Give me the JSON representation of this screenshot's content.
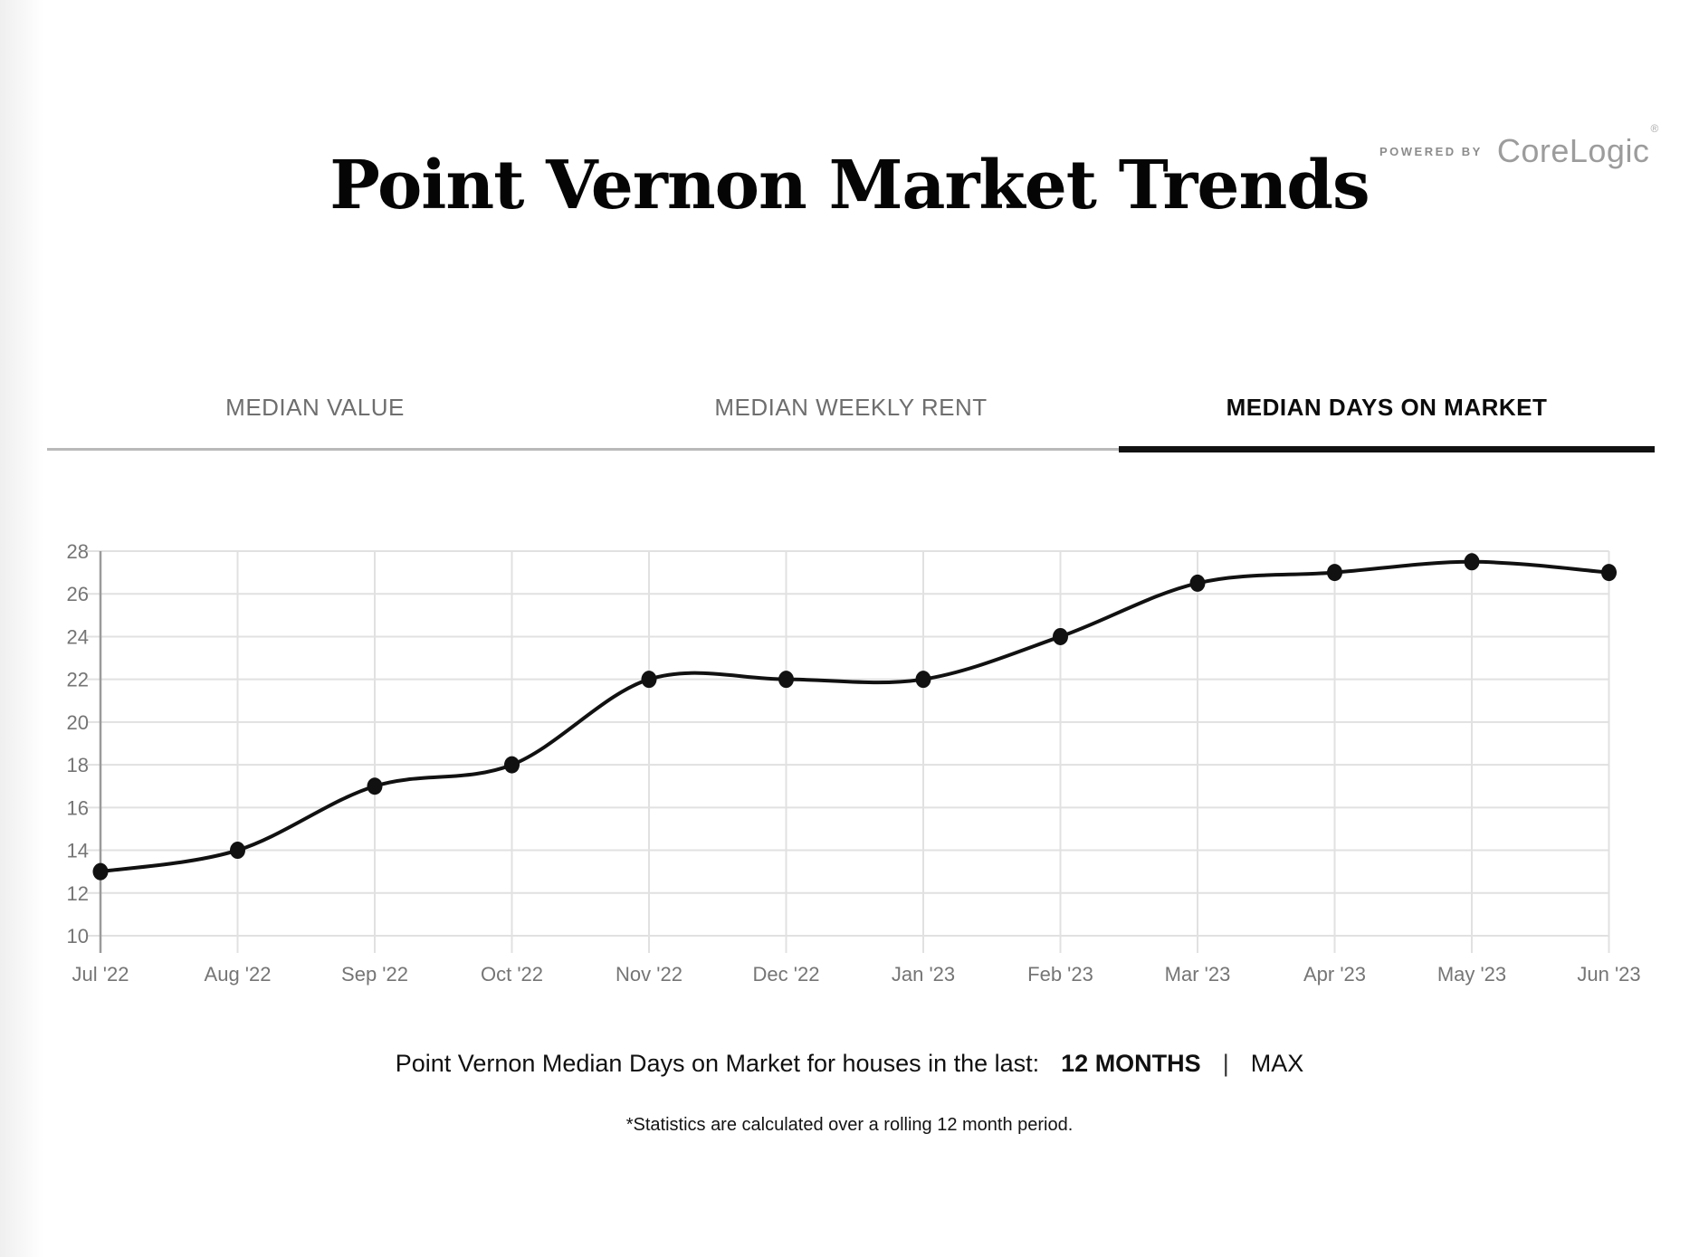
{
  "page": {
    "title": "Point Vernon Market Trends"
  },
  "powered_by": {
    "prefix": "POWERED BY",
    "brand": "CoreLogic",
    "mark": "®"
  },
  "tabs": {
    "items": [
      {
        "label": "MEDIAN VALUE",
        "active": false
      },
      {
        "label": "MEDIAN WEEKLY RENT",
        "active": false
      },
      {
        "label": "MEDIAN DAYS ON MARKET",
        "active": true
      }
    ]
  },
  "chart_data": {
    "type": "line",
    "title": "Median Days on Market",
    "categories": [
      "Jul '22",
      "Aug '22",
      "Sep '22",
      "Oct '22",
      "Nov '22",
      "Dec '22",
      "Jan '23",
      "Feb '23",
      "Mar '23",
      "Apr '23",
      "May '23",
      "Jun '23"
    ],
    "series": [
      {
        "name": "Median Days on Market",
        "values": [
          13,
          14,
          17,
          18,
          22,
          22,
          22,
          24,
          26.5,
          27,
          27.5,
          27
        ]
      }
    ],
    "ylim": [
      10,
      28
    ],
    "ytick_step": 2,
    "ytick_labels": [
      "10",
      "12",
      "14",
      "16",
      "18",
      "20",
      "22",
      "24",
      "26",
      "28"
    ],
    "grid": true,
    "markers": true,
    "legend": "none",
    "line_color": "#111111",
    "marker_color": "#111111",
    "grid_color": "#e1e1e1",
    "axis_color": "#9a9a9a",
    "tick_label_color": "#757575"
  },
  "footer": {
    "summary_prefix": "Point Vernon Median Days on Market for houses in the last:",
    "period_selected": "12 MONTHS",
    "separator": "|",
    "period_alt": "MAX",
    "footnote": "*Statistics are calculated over a rolling 12 month period."
  }
}
